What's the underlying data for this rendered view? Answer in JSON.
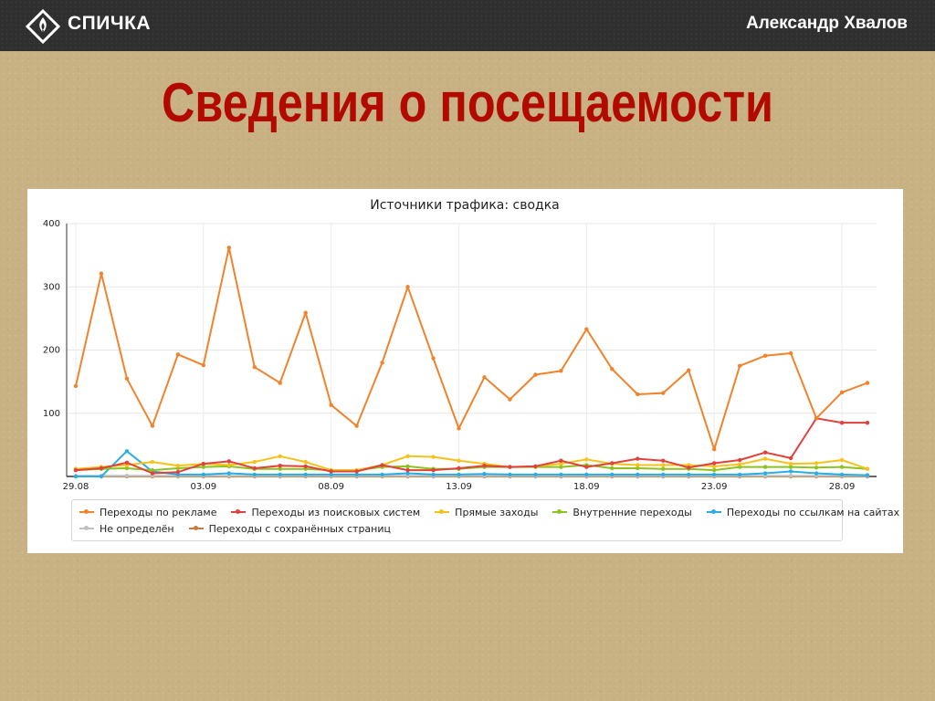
{
  "header": {
    "brand": "СПИЧКА",
    "author": "Александр Хвалов",
    "logo_icon": "match-flame-icon"
  },
  "slide": {
    "title": "Сведения о посещаемости"
  },
  "chart_data": {
    "type": "line",
    "title": "Источники трафика: сводка",
    "xlabel": "",
    "ylabel": "",
    "ylim": [
      0,
      400
    ],
    "yticks": [
      100,
      200,
      300,
      400
    ],
    "x_tick_labels": [
      {
        "index": 0,
        "label": "29.08",
        "color": "#222222"
      },
      {
        "index": 5,
        "label": "03.09",
        "color": "#222222"
      },
      {
        "index": 10,
        "label": "08.09",
        "color": "#c0392b"
      },
      {
        "index": 15,
        "label": "13.09",
        "color": "#222222"
      },
      {
        "index": 20,
        "label": "18.09",
        "color": "#222222"
      },
      {
        "index": 25,
        "label": "23.09",
        "color": "#c0392b"
      },
      {
        "index": 30,
        "label": "28.09",
        "color": "#222222"
      }
    ],
    "grid": true,
    "legend_position": "bottom",
    "series": [
      {
        "name": "Переходы по рекламе",
        "color": "#f0832c",
        "values": [
          143,
          321,
          155,
          80,
          193,
          176,
          362,
          173,
          148,
          259,
          113,
          80,
          180,
          300,
          187,
          76,
          157,
          122,
          161,
          167,
          233,
          170,
          130,
          132,
          168,
          43,
          175,
          191,
          195,
          92,
          133,
          148
        ]
      },
      {
        "name": "Переходы из поисковых систем",
        "color": "#e0413c",
        "values": [
          10,
          13,
          22,
          5,
          7,
          20,
          24,
          13,
          17,
          16,
          8,
          8,
          18,
          10,
          10,
          13,
          17,
          15,
          16,
          25,
          15,
          21,
          28,
          25,
          14,
          21,
          26,
          38,
          29,
          92,
          85,
          85
        ]
      },
      {
        "name": "Прямые заходы",
        "color": "#f4c21b",
        "values": [
          12,
          15,
          18,
          23,
          17,
          20,
          18,
          23,
          32,
          23,
          10,
          10,
          18,
          32,
          31,
          25,
          20,
          15,
          16,
          20,
          27,
          20,
          18,
          18,
          18,
          16,
          19,
          28,
          20,
          21,
          26,
          12
        ]
      },
      {
        "name": "Внутренние переходы",
        "color": "#8dc21f",
        "values": [
          10,
          12,
          13,
          10,
          13,
          15,
          16,
          12,
          12,
          12,
          10,
          10,
          15,
          16,
          12,
          12,
          15,
          15,
          15,
          15,
          18,
          13,
          13,
          12,
          12,
          10,
          15,
          15,
          15,
          14,
          15,
          12
        ]
      },
      {
        "name": "Переходы по ссылкам на сайтах",
        "color": "#2aaee2",
        "values": [
          0,
          0,
          40,
          8,
          3,
          3,
          5,
          3,
          3,
          3,
          3,
          3,
          3,
          5,
          3,
          3,
          4,
          3,
          3,
          3,
          3,
          3,
          3,
          3,
          3,
          3,
          3,
          5,
          8,
          5,
          3,
          2
        ]
      },
      {
        "name": "Не определён",
        "color": "#bfbfbf",
        "values": [
          1,
          1,
          1,
          1,
          1,
          1,
          1,
          1,
          1,
          1,
          1,
          1,
          1,
          1,
          1,
          1,
          1,
          1,
          1,
          1,
          1,
          1,
          1,
          1,
          1,
          1,
          1,
          1,
          1,
          1,
          1,
          1
        ]
      },
      {
        "name": "Переходы с сохранённых страниц",
        "color": "#c97a3a",
        "values": [
          0,
          0,
          0,
          0,
          0,
          0,
          0,
          0,
          0,
          0,
          0,
          0,
          0,
          0,
          0,
          0,
          0,
          0,
          0,
          0,
          0,
          0,
          0,
          0,
          0,
          0,
          0,
          0,
          0,
          0,
          0,
          0
        ]
      }
    ]
  }
}
